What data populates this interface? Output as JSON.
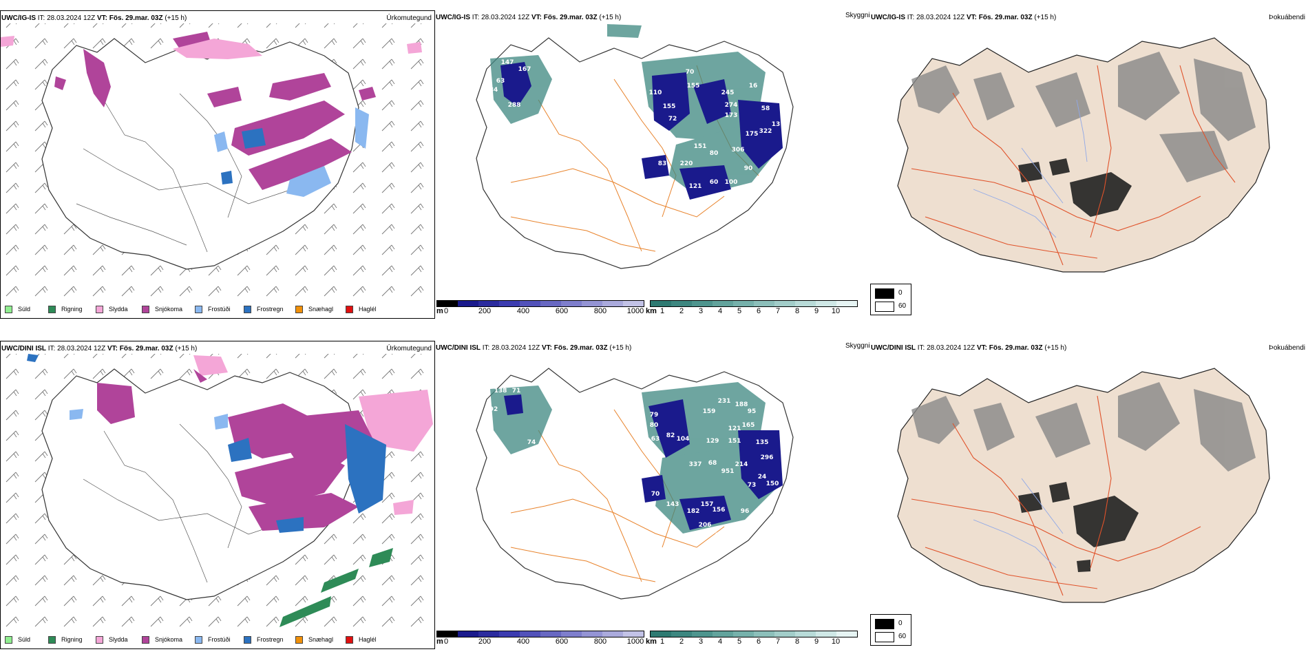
{
  "rows": [
    {
      "model": "UWC/IG-IS",
      "it_label": "IT:",
      "it_value": "28.03.2024 12Z",
      "vt_label": "VT:",
      "vt_value": "Fös. 29.mar. 03Z",
      "lead": "(+15 h)"
    },
    {
      "model": "UWC/DINI ISL",
      "it_label": "IT:",
      "it_value": "28.03.2024 12Z",
      "vt_label": "VT:",
      "vt_value": "Fös. 29.mar. 03Z",
      "lead": "(+15 h)"
    }
  ],
  "panel_titles": {
    "precip_type": "Úrkomutegund",
    "visibility": "Skyggni",
    "cloud": "Þokuábendi"
  },
  "precip_legend": [
    {
      "label": "Súld",
      "color": "#90ee90"
    },
    {
      "label": "Rigning",
      "color": "#2e8b57"
    },
    {
      "label": "Slydda",
      "color": "#f4a6d7"
    },
    {
      "label": "Snjókoma",
      "color": "#b0449a"
    },
    {
      "label": "Frostúði",
      "color": "#8ab8f0"
    },
    {
      "label": "Frostregn",
      "color": "#2c72c0"
    },
    {
      "label": "Snæhagl",
      "color": "#f0900a"
    },
    {
      "label": "Haglél",
      "color": "#e01010"
    }
  ],
  "visibility_m": {
    "unit": "m",
    "ticks": [
      "0",
      "200",
      "400",
      "600",
      "800",
      "1000"
    ],
    "colors": [
      "#000000",
      "#1a1a8c",
      "#2b2b9e",
      "#3c3cb0",
      "#5252ba",
      "#6868c2",
      "#7e7ecc",
      "#9494d4",
      "#aaaadc",
      "#c2c2e6"
    ]
  },
  "visibility_km": {
    "unit": "km",
    "ticks": [
      "1",
      "2",
      "3",
      "4",
      "5",
      "6",
      "7",
      "8",
      "9",
      "10"
    ],
    "colors": [
      "#2e7a72",
      "#3d8780",
      "#4e958e",
      "#62a39c",
      "#76b1ab",
      "#8cbfba",
      "#a2cdc9",
      "#b8dbd8",
      "#cfe8e6",
      "#e6f4f3"
    ]
  },
  "cloud_legend": [
    {
      "label": "0",
      "color": "#000000"
    },
    {
      "label": "60",
      "color": "#ffffff"
    }
  ],
  "visibility_labels_top": [
    "147",
    "167",
    "63",
    "84",
    "288",
    "134",
    "91",
    "47",
    "110",
    "155",
    "59",
    "72",
    "70",
    "155",
    "245",
    "16",
    "274",
    "173",
    "58",
    "83",
    "220",
    "121",
    "60",
    "100",
    "80",
    "306",
    "90",
    "85",
    "175",
    "322",
    "13",
    "151"
  ],
  "visibility_labels_bottom": [
    "138",
    "71",
    "92",
    "74",
    "79",
    "80",
    "63",
    "82",
    "104",
    "159",
    "231",
    "188",
    "95",
    "165",
    "62",
    "121",
    "151",
    "135",
    "129",
    "337",
    "68",
    "951",
    "214",
    "296",
    "70",
    "143",
    "182",
    "157",
    "156",
    "96",
    "206",
    "97",
    "73",
    "24",
    "150"
  ]
}
